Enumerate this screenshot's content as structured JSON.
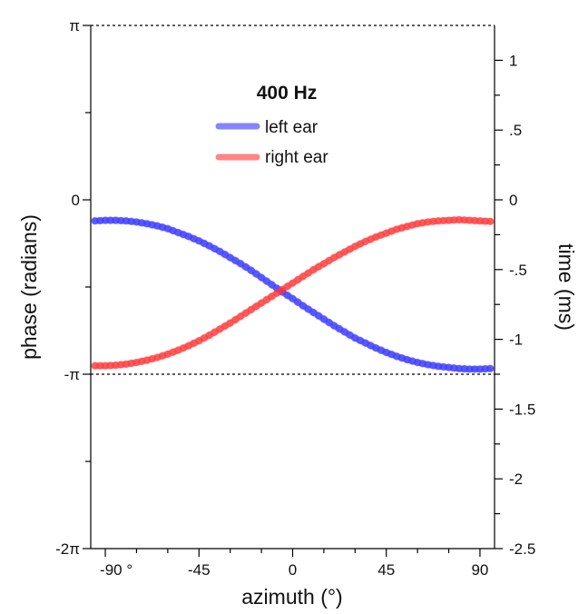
{
  "chart_data": {
    "type": "scatter",
    "title": "400 Hz",
    "xlabel": "azimuth (°)",
    "ylabel": "phase (radians)",
    "y2label": "time (ms)",
    "xlim": [
      -97,
      97
    ],
    "ylim": [
      -6.2832,
      3.1416
    ],
    "x_ticks": [
      {
        "value": -90,
        "label": "-90 °"
      },
      {
        "value": -45,
        "label": "-45"
      },
      {
        "value": 0,
        "label": "0"
      },
      {
        "value": 45,
        "label": "45"
      },
      {
        "value": 90,
        "label": "90"
      }
    ],
    "y_ticks": [
      {
        "value": 3.1416,
        "label": "π"
      },
      {
        "value": 0,
        "label": "0"
      },
      {
        "value": -3.1416,
        "label": "-π"
      },
      {
        "value": -6.2832,
        "label": "-2π"
      }
    ],
    "y2_ticks": [
      {
        "value": 1,
        "label": "1"
      },
      {
        "value": 0.5,
        "label": ".5"
      },
      {
        "value": 0,
        "label": "0"
      },
      {
        "value": -0.5,
        "label": "-.5"
      },
      {
        "value": -1,
        "label": "-1"
      },
      {
        "value": -1.5,
        "label": "-1.5"
      },
      {
        "value": -2,
        "label": "-2"
      },
      {
        "value": -2.5,
        "label": "-2.5"
      }
    ],
    "reference_lines_y": [
      3.1416,
      -3.1416
    ],
    "legend_position": "top-center",
    "series": [
      {
        "name": "left ear",
        "color": "#3333ff",
        "x": [
          -95,
          -90,
          -85,
          -80,
          -75,
          -70,
          -65,
          -60,
          -55,
          -50,
          -45,
          -40,
          -35,
          -30,
          -25,
          -20,
          -15,
          -10,
          -5,
          0,
          5,
          10,
          15,
          20,
          25,
          30,
          35,
          40,
          45,
          50,
          55,
          60,
          65,
          70,
          75,
          80,
          85,
          90,
          95
        ],
        "y": [
          -0.38,
          -0.37,
          -0.37,
          -0.38,
          -0.4,
          -0.43,
          -0.47,
          -0.52,
          -0.59,
          -0.66,
          -0.74,
          -0.83,
          -0.93,
          -1.04,
          -1.15,
          -1.27,
          -1.4,
          -1.53,
          -1.66,
          -1.78,
          -1.91,
          -2.03,
          -2.15,
          -2.27,
          -2.38,
          -2.49,
          -2.58,
          -2.67,
          -2.75,
          -2.82,
          -2.88,
          -2.93,
          -2.97,
          -3.0,
          -3.02,
          -3.04,
          -3.05,
          -3.05,
          -3.04
        ]
      },
      {
        "name": "right ear",
        "color": "#ff3333",
        "x": [
          -95,
          -90,
          -85,
          -80,
          -75,
          -70,
          -65,
          -60,
          -55,
          -50,
          -45,
          -40,
          -35,
          -30,
          -25,
          -20,
          -15,
          -10,
          -5,
          0,
          5,
          10,
          15,
          20,
          25,
          30,
          35,
          40,
          45,
          50,
          55,
          60,
          65,
          70,
          75,
          80,
          85,
          90,
          95
        ],
        "y": [
          -2.99,
          -2.99,
          -2.98,
          -2.96,
          -2.93,
          -2.89,
          -2.84,
          -2.78,
          -2.71,
          -2.63,
          -2.54,
          -2.44,
          -2.33,
          -2.22,
          -2.1,
          -1.98,
          -1.86,
          -1.74,
          -1.62,
          -1.5,
          -1.38,
          -1.26,
          -1.15,
          -1.04,
          -0.94,
          -0.84,
          -0.75,
          -0.67,
          -0.6,
          -0.53,
          -0.48,
          -0.43,
          -0.4,
          -0.38,
          -0.37,
          -0.36,
          -0.37,
          -0.38,
          -0.39
        ]
      }
    ]
  }
}
